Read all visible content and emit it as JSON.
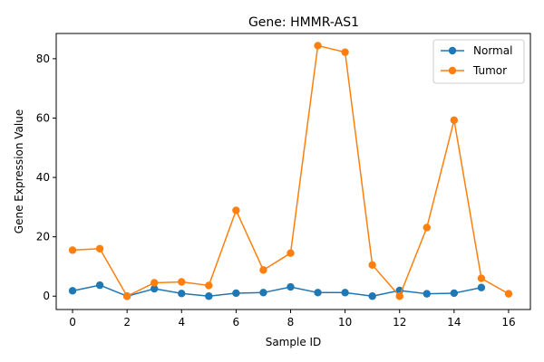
{
  "chart_data": {
    "type": "line",
    "title": "Gene: HMMR-AS1",
    "xlabel": "Sample ID",
    "ylabel": "Gene Expression Value",
    "x": [
      0,
      1,
      2,
      3,
      4,
      5,
      6,
      7,
      8,
      9,
      10,
      11,
      12,
      13,
      14,
      15,
      16
    ],
    "xlim": [
      -0.6,
      16.8
    ],
    "ylim": [
      -4.5,
      88.5
    ],
    "xticks": [
      0,
      2,
      4,
      6,
      8,
      10,
      12,
      14,
      16
    ],
    "yticks": [
      0,
      20,
      40,
      60,
      80
    ],
    "grid": false,
    "legend_position": "top-right",
    "series": [
      {
        "name": "Normal",
        "color": "#1f77b4",
        "x": [
          0,
          1,
          2,
          3,
          4,
          5,
          6,
          7,
          8,
          9,
          10,
          11,
          12,
          13,
          14,
          15
        ],
        "values": [
          1.8,
          3.7,
          0.0,
          2.5,
          0.9,
          0.0,
          1.0,
          1.2,
          3.1,
          1.2,
          1.2,
          0.0,
          1.9,
          0.8,
          1.0,
          2.9
        ]
      },
      {
        "name": "Tumor",
        "color": "#ff7f0e",
        "x": [
          0,
          1,
          2,
          3,
          4,
          5,
          6,
          7,
          8,
          9,
          10,
          11,
          12,
          13,
          14,
          15,
          16
        ],
        "values": [
          15.5,
          16.0,
          0.0,
          4.5,
          4.8,
          3.6,
          28.9,
          8.8,
          14.5,
          84.4,
          82.2,
          10.5,
          0.0,
          23.1,
          59.3,
          6.0,
          0.8
        ]
      }
    ]
  }
}
